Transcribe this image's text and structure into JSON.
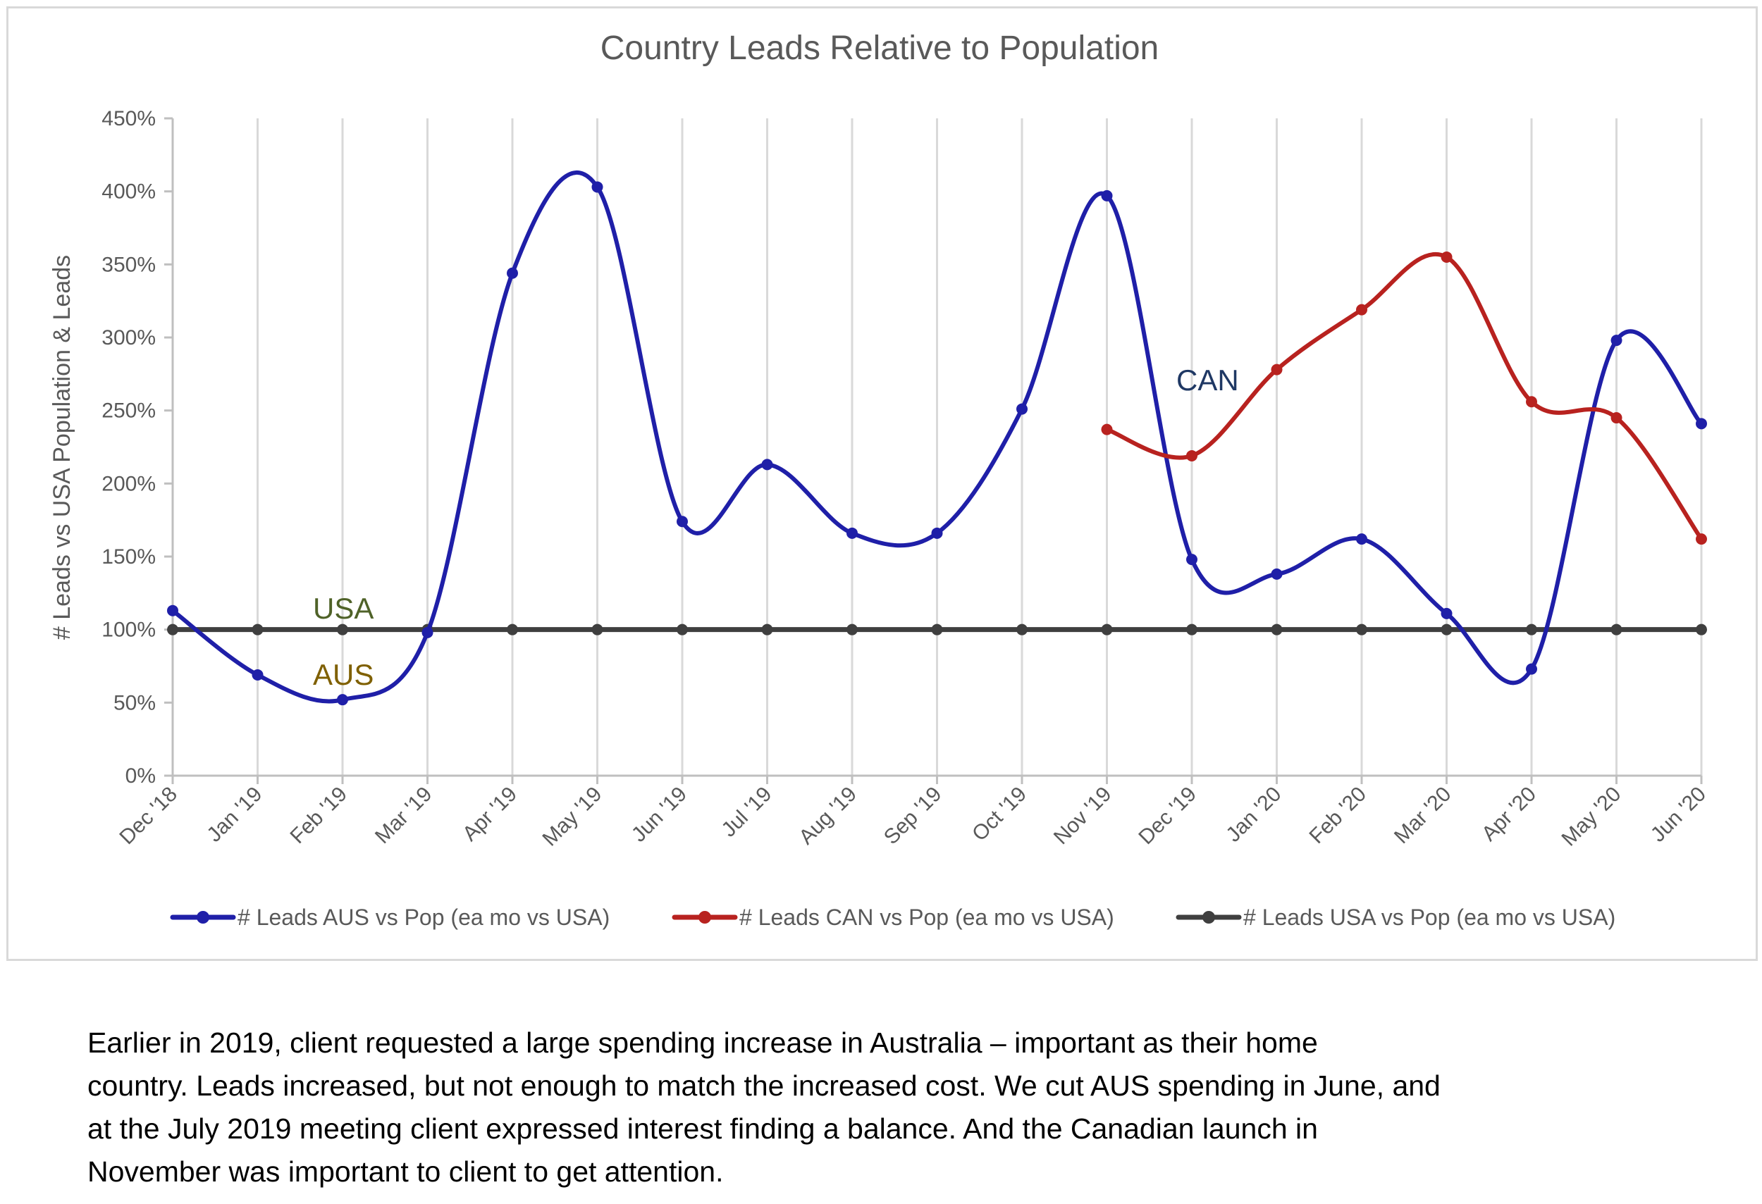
{
  "chart_data": {
    "type": "line",
    "title": "Country  Leads Relative to Population",
    "xlabel": "",
    "ylabel": "# Leads vs USA Population & Leads",
    "categories": [
      "Dec '18",
      "Jan '19",
      "Feb '19",
      "Mar '19",
      "Apr '19",
      "May '19",
      "Jun '19",
      "Jul '19",
      "Aug '19",
      "Sep '19",
      "Oct '19",
      "Nov '19",
      "Dec '19",
      "Jan '20",
      "Feb '20",
      "Mar '20",
      "Apr '20",
      "May '20",
      "Jun '20"
    ],
    "ylim": [
      0,
      4.5
    ],
    "yticks": [
      "0%",
      "50%",
      "100%",
      "150%",
      "200%",
      "250%",
      "300%",
      "350%",
      "400%",
      "450%"
    ],
    "grid": "vertical",
    "legend_position": "bottom",
    "series": [
      {
        "name": "# Leads AUS vs Pop (ea mo vs USA)",
        "color": "#1f1fa8",
        "values": [
          1.13,
          0.69,
          0.52,
          0.98,
          3.44,
          4.03,
          1.74,
          2.13,
          1.66,
          1.66,
          2.51,
          3.97,
          1.48,
          1.38,
          1.62,
          1.11,
          0.73,
          2.98,
          2.41
        ]
      },
      {
        "name": "# Leads CAN vs Pop (ea mo vs USA)",
        "color": "#b8221f",
        "values": [
          null,
          null,
          null,
          null,
          null,
          null,
          null,
          null,
          null,
          null,
          null,
          2.37,
          2.19,
          2.78,
          3.19,
          3.55,
          2.56,
          2.45,
          1.62
        ]
      },
      {
        "name": "# Leads USA vs Pop (ea mo vs USA)",
        "color": "#3f3f3f",
        "values": [
          1,
          1,
          1,
          1,
          1,
          1,
          1,
          1,
          1,
          1,
          1,
          1,
          1,
          1,
          1,
          1,
          1,
          1,
          1
        ]
      }
    ],
    "annotations": [
      {
        "text": "USA",
        "color": "#4f6228"
      },
      {
        "text": "AUS",
        "color": "#7f6000"
      },
      {
        "text": "CAN",
        "color": "#1f3864"
      }
    ]
  },
  "caption": "Earlier in 2019, client requested a large spending increase in Australia – important as their home country. Leads increased, but not enough to match the increased cost. We cut AUS spending in June, and at the July 2019 meeting client expressed interest finding a balance. And the Canadian launch in November was important to client to get attention.",
  "caption_lines": [
    "Earlier in 2019, client requested a large spending increase in Australia – important as their home",
    "country. Leads increased, but not enough to match the increased cost. We cut AUS spending in June, and",
    "at the July 2019 meeting client expressed interest finding a balance. And the Canadian launch in",
    "November was important to client to get attention."
  ]
}
